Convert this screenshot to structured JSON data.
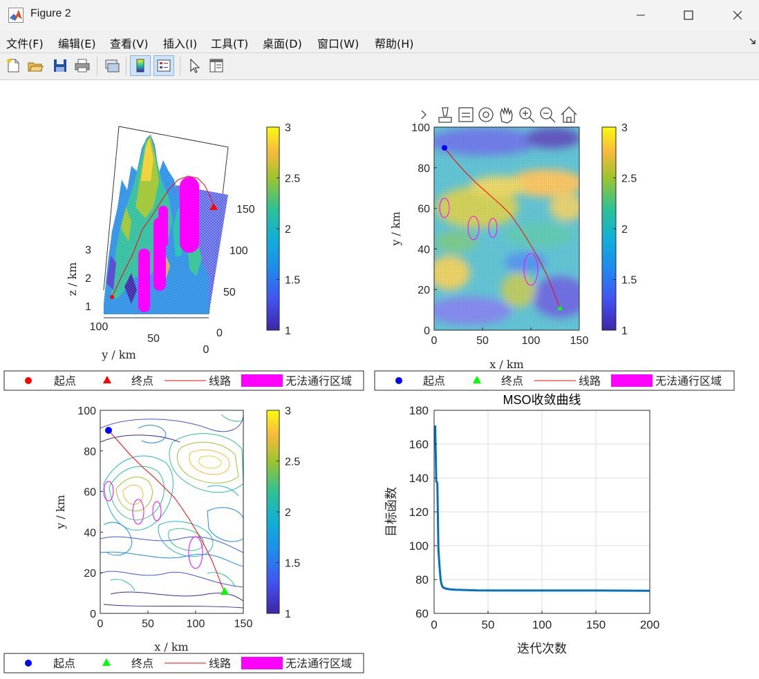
{
  "window": {
    "title": "Figure 2"
  },
  "menu": [
    "文件(F)",
    "编辑(E)",
    "查看(V)",
    "插入(I)",
    "工具(T)",
    "桌面(D)",
    "窗口(W)",
    "帮助(H)"
  ],
  "toolbar": [
    "new-figure",
    "open-file",
    "save",
    "print",
    "link-plot",
    "colorbar",
    "legend",
    "edit-plot",
    "property-inspector"
  ],
  "axes_toolbar": [
    "chevron",
    "brush",
    "data-tips",
    "rotate",
    "pan",
    "zoom-in",
    "zoom-out",
    "home"
  ],
  "legend": {
    "start": "起点",
    "end": "终点",
    "route": "线路",
    "blocked": "无法通行区域"
  },
  "colors": {
    "route": "#ff0000",
    "blocked": "#ff00ff",
    "start_red": "#ff0000",
    "start_blue": "#0000ff",
    "end_green": "#00ff00",
    "curve": "#0072bd"
  },
  "colorbar": {
    "min": 1,
    "max": 3,
    "ticks": [
      "1",
      "1.5",
      "2",
      "2.5",
      "3"
    ]
  },
  "plot3d": {
    "zlabel": "z / km",
    "ylabel": "y / km",
    "zticks": [
      "1",
      "2",
      "3"
    ],
    "yticks": [
      "100",
      "50",
      "0"
    ],
    "xticks": [
      "0",
      "50",
      "100",
      "150"
    ]
  },
  "plot2d": {
    "xlabel": "x / km",
    "ylabel": "y / km",
    "xticks": [
      "0",
      "50",
      "100",
      "150"
    ],
    "yticks": [
      "0",
      "20",
      "40",
      "60",
      "80",
      "100"
    ]
  },
  "contour": {
    "xlabel": "x / km",
    "ylabel": "y / km",
    "xticks": [
      "0",
      "50",
      "100",
      "150"
    ],
    "yticks": [
      "0",
      "20",
      "40",
      "60",
      "80",
      "100"
    ]
  },
  "chart_data": {
    "type": "line",
    "title": "MSO收敛曲线",
    "xlabel": "迭代次数",
    "ylabel": "目标函数",
    "xlim": [
      0,
      200
    ],
    "ylim": [
      60,
      180
    ],
    "grid": true,
    "xticks": [
      "0",
      "50",
      "100",
      "150",
      "200"
    ],
    "yticks": [
      "60",
      "80",
      "100",
      "120",
      "140",
      "160",
      "180"
    ],
    "x": [
      1,
      2,
      3,
      4,
      5,
      6,
      7,
      8,
      10,
      12,
      15,
      20,
      30,
      40,
      60,
      100,
      150,
      200
    ],
    "y": [
      171,
      138,
      137,
      98,
      88,
      80,
      77,
      75.5,
      74.8,
      74.5,
      74.2,
      74,
      73.8,
      73.6,
      73.5,
      73.5,
      73.5,
      73.4
    ]
  }
}
